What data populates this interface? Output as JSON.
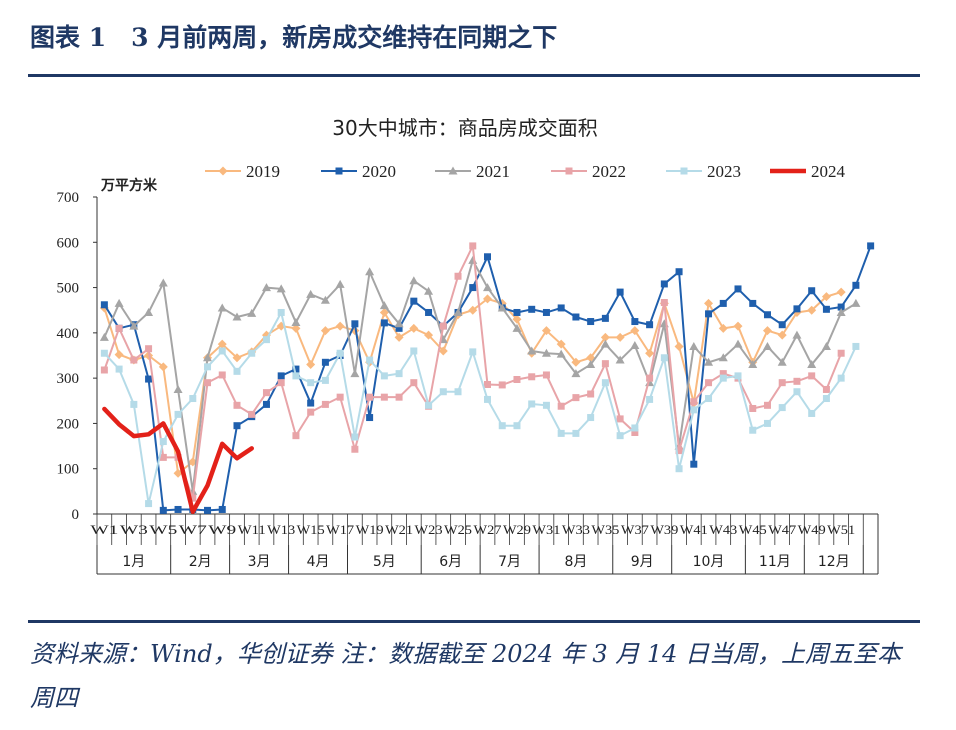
{
  "figure": {
    "title": "图表 1　3 月前两周，新房成交维持在同期之下",
    "note": "资料来源：Wind，华创证券 注：数据截至 2024 年 3 月 14 日当周，上周五至本周四"
  },
  "chart_data": {
    "type": "line",
    "title": "30大中城市：商品房成交面积",
    "ylabel": "万平方米",
    "ylim": [
      0,
      700
    ],
    "yticks": [
      0,
      100,
      200,
      300,
      400,
      500,
      600,
      700
    ],
    "x": [
      "W1",
      "W2",
      "W3",
      "W4",
      "W5",
      "W6",
      "W7",
      "W8",
      "W9",
      "W10",
      "W11",
      "W12",
      "W13",
      "W14",
      "W15",
      "W16",
      "W17",
      "W18",
      "W19",
      "W20",
      "W21",
      "W22",
      "W23",
      "W24",
      "W25",
      "W26",
      "W27",
      "W28",
      "W29",
      "W30",
      "W31",
      "W32",
      "W33",
      "W34",
      "W35",
      "W36",
      "W37",
      "W38",
      "W39",
      "W40",
      "W41",
      "W42",
      "W43",
      "W44",
      "W45",
      "W46",
      "W47",
      "W48",
      "W49",
      "W50",
      "W51",
      "W52",
      "W53"
    ],
    "x_tick_labels": [
      "W1",
      "W3",
      "W5",
      "W7",
      "W9",
      "W11",
      "W13",
      "W15",
      "W17",
      "W19",
      "W21",
      "W23",
      "W25",
      "W27",
      "W29",
      "W31",
      "W33",
      "W35",
      "W37",
      "W39",
      "W41",
      "W43",
      "W45",
      "W47",
      "W49",
      "W51"
    ],
    "month_groups": [
      {
        "label": "1月",
        "start": 1,
        "end": 5
      },
      {
        "label": "2月",
        "start": 6,
        "end": 9
      },
      {
        "label": "3月",
        "start": 10,
        "end": 13
      },
      {
        "label": "4月",
        "start": 14,
        "end": 17
      },
      {
        "label": "5月",
        "start": 18,
        "end": 22
      },
      {
        "label": "6月",
        "start": 23,
        "end": 26
      },
      {
        "label": "7月",
        "start": 27,
        "end": 30
      },
      {
        "label": "8月",
        "start": 31,
        "end": 35
      },
      {
        "label": "9月",
        "start": 36,
        "end": 39
      },
      {
        "label": "10月",
        "start": 40,
        "end": 44
      },
      {
        "label": "11月",
        "start": 45,
        "end": 48
      },
      {
        "label": "12月",
        "start": 49,
        "end": 52
      }
    ],
    "legend_position": "top",
    "grid": false,
    "series": [
      {
        "name": "2019",
        "color": "#f9b97f",
        "marker": "diamond",
        "width": 2,
        "values": [
          455,
          352,
          340,
          350,
          325,
          90,
          115,
          345,
          375,
          345,
          358,
          395,
          415,
          410,
          330,
          405,
          415,
          405,
          335,
          445,
          390,
          410,
          395,
          360,
          440,
          450,
          475,
          465,
          430,
          355,
          405,
          375,
          335,
          345,
          390,
          390,
          405,
          355,
          465,
          370,
          245,
          465,
          410,
          415,
          335,
          405,
          395,
          445,
          450,
          480,
          490,
          null,
          null
        ]
      },
      {
        "name": "2020",
        "color": "#1f5fad",
        "marker": "square",
        "width": 2,
        "values": [
          462,
          410,
          418,
          298,
          8,
          10,
          10,
          8,
          10,
          195,
          215,
          242,
          305,
          320,
          245,
          335,
          350,
          420,
          213,
          422,
          410,
          470,
          445,
          415,
          445,
          500,
          568,
          455,
          445,
          452,
          445,
          455,
          435,
          425,
          432,
          490,
          425,
          418,
          508,
          535,
          110,
          442,
          465,
          497,
          465,
          440,
          418,
          453,
          493,
          452,
          457,
          505,
          592
        ]
      },
      {
        "name": "2021",
        "color": "#a5a5a5",
        "marker": "triangle",
        "width": 2,
        "values": [
          390,
          465,
          415,
          445,
          510,
          275,
          50,
          345,
          455,
          435,
          443,
          500,
          497,
          423,
          485,
          472,
          507,
          310,
          535,
          460,
          420,
          515,
          492,
          385,
          445,
          560,
          500,
          455,
          410,
          360,
          355,
          353,
          310,
          330,
          375,
          340,
          372,
          290,
          420,
          150,
          370,
          335,
          345,
          375,
          330,
          370,
          335,
          395,
          330,
          370,
          445,
          465,
          null
        ]
      },
      {
        "name": "2022",
        "color": "#e8a4a8",
        "marker": "square",
        "width": 2,
        "values": [
          318,
          410,
          340,
          365,
          125,
          125,
          35,
          290,
          307,
          240,
          220,
          268,
          290,
          173,
          225,
          242,
          258,
          143,
          258,
          258,
          258,
          290,
          238,
          415,
          525,
          592,
          286,
          285,
          297,
          303,
          307,
          238,
          257,
          265,
          332,
          210,
          180,
          300,
          467,
          140,
          248,
          290,
          310,
          300,
          233,
          240,
          290,
          293,
          305,
          275,
          355,
          null,
          null
        ]
      },
      {
        "name": "2023",
        "color": "#b5dbe8",
        "marker": "square",
        "width": 2,
        "values": [
          355,
          320,
          242,
          23,
          160,
          220,
          255,
          325,
          360,
          315,
          355,
          385,
          445,
          305,
          290,
          295,
          355,
          170,
          340,
          305,
          310,
          360,
          240,
          270,
          270,
          358,
          253,
          195,
          195,
          243,
          240,
          178,
          178,
          213,
          290,
          173,
          190,
          253,
          345,
          100,
          230,
          255,
          300,
          305,
          185,
          200,
          235,
          270,
          222,
          255,
          300,
          370,
          null
        ]
      },
      {
        "name": "2024",
        "color": "#e32119",
        "marker": "none",
        "width": 4.5,
        "values": [
          232,
          198,
          172,
          176,
          200,
          138,
          5,
          63,
          155,
          123,
          145,
          null,
          null,
          null,
          null,
          null,
          null,
          null,
          null,
          null,
          null,
          null,
          null,
          null,
          null,
          null,
          null,
          null,
          null,
          null,
          null,
          null,
          null,
          null,
          null,
          null,
          null,
          null,
          null,
          null,
          null,
          null,
          null,
          null,
          null,
          null,
          null,
          null,
          null,
          null,
          null,
          null,
          null
        ]
      }
    ]
  }
}
